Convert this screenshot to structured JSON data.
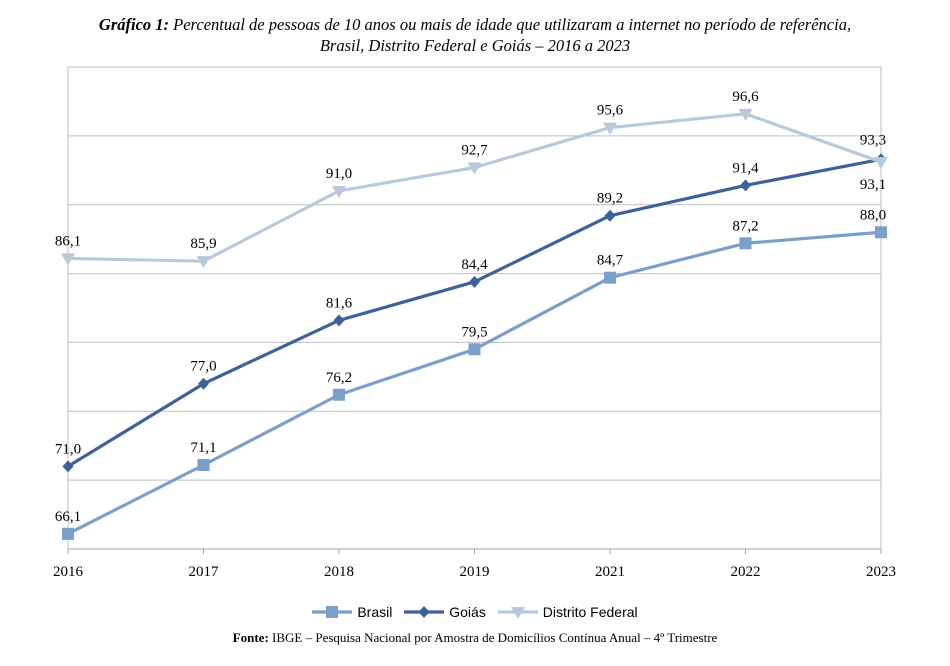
{
  "title_label": "Gráfico 1:",
  "title_line1": "Percentual de pessoas de 10 anos ou mais de idade que utilizaram a internet no período de referência,",
  "title_line2": "Brasil, Distrito Federal e Goiás – 2016 a 2023",
  "source_label": "Fonte:",
  "source_text": "IBGE – Pesquisa Nacional por Amostra de Domicílios Contínua Anual – 4º Trimestre",
  "colors": {
    "brasil": "#7a9fcb",
    "goias": "#3d6199",
    "df": "#b8c9dd",
    "grid": "#c0c0c0",
    "frame": "#bdbdbd"
  },
  "chart_data": {
    "type": "line",
    "categories": [
      "2016",
      "2017",
      "2018",
      "2019",
      "2021",
      "2022",
      "2023"
    ],
    "ylim": [
      65,
      100
    ],
    "grid": true,
    "legend_position": "bottom",
    "series": [
      {
        "name": "Brasil",
        "marker": "square",
        "values": [
          66.1,
          71.1,
          76.2,
          79.5,
          84.7,
          87.2,
          88.0
        ],
        "labels": [
          "66,1",
          "71,1",
          "76,2",
          "79,5",
          "84,7",
          "87,2",
          "88,0"
        ]
      },
      {
        "name": "Goiás",
        "marker": "diamond",
        "values": [
          71.0,
          77.0,
          81.6,
          84.4,
          89.2,
          91.4,
          93.3
        ],
        "labels": [
          "71,0",
          "77,0",
          "81,6",
          "84,4",
          "89,2",
          "91,4",
          "93,3"
        ]
      },
      {
        "name": "Distrito Federal",
        "marker": "triangle-down",
        "values": [
          86.1,
          85.9,
          91.0,
          92.7,
          95.6,
          96.6,
          93.1
        ],
        "labels": [
          "86,1",
          "85,9",
          "91,0",
          "92,7",
          "95,6",
          "96,6",
          "93,1"
        ]
      }
    ]
  }
}
